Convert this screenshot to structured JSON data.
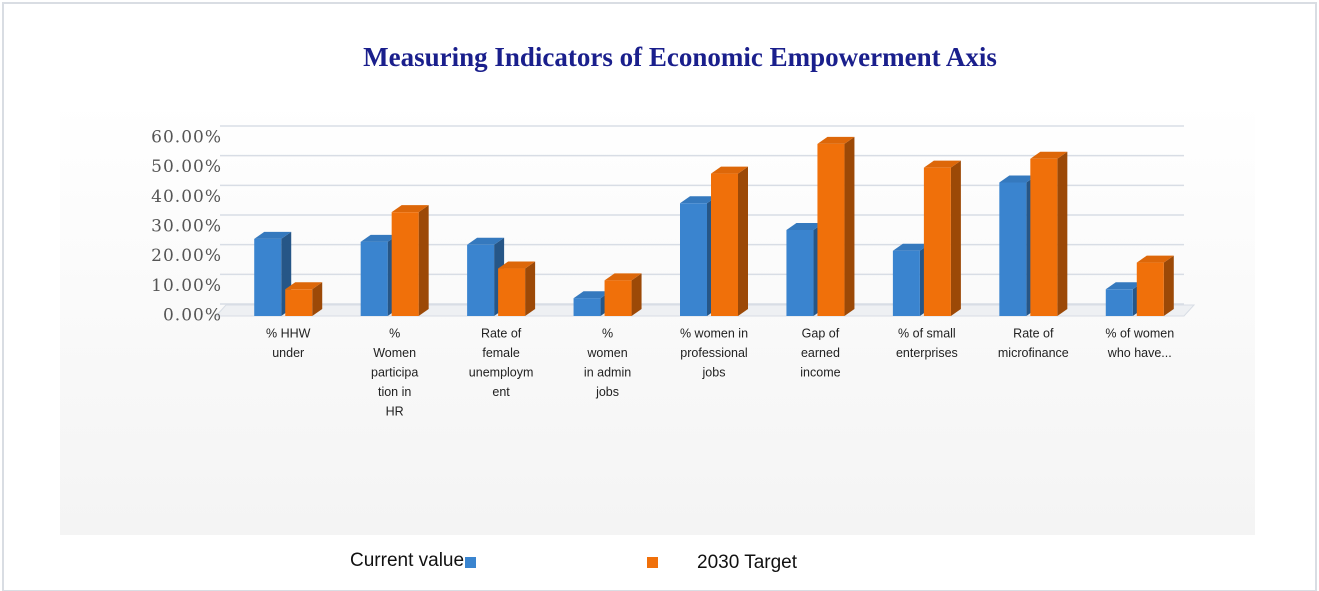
{
  "chart_data": {
    "type": "bar",
    "title": "Measuring Indicators of Economic Empowerment Axis",
    "categories": [
      [
        "% HHW",
        "under"
      ],
      [
        "%",
        "Women",
        "participa",
        "tion in",
        "HR"
      ],
      [
        "Rate of",
        "female",
        "unemploym",
        "ent"
      ],
      [
        "%",
        "women",
        "in admin",
        "jobs"
      ],
      [
        "% women in",
        "professional",
        "jobs"
      ],
      [
        "Gap of",
        "earned",
        "income"
      ],
      [
        "% of small",
        "enterprises"
      ],
      [
        "Rate of",
        "microfinance"
      ],
      [
        "% of women",
        "who have..."
      ]
    ],
    "series": [
      {
        "name": "Current value",
        "color": "#3a84cf",
        "values": [
          26,
          25,
          24,
          6,
          38,
          29,
          22,
          45,
          9
        ]
      },
      {
        "name": "2030 Target",
        "color": "#f0700a",
        "values": [
          9,
          35,
          16,
          12,
          48,
          58,
          50,
          53,
          18
        ]
      }
    ],
    "ylim": [
      0,
      60
    ],
    "yticks": [
      {
        "value": 0,
        "label": "0.00%"
      },
      {
        "value": 10,
        "label": "10.00%"
      },
      {
        "value": 20,
        "label": "20.00%"
      },
      {
        "value": 30,
        "label": "30.00%"
      },
      {
        "value": 40,
        "label": "40.00%"
      },
      {
        "value": 50,
        "label": "50.00%"
      },
      {
        "value": 60,
        "label": "60.00%"
      }
    ],
    "grid": true,
    "legend": "bottom"
  }
}
